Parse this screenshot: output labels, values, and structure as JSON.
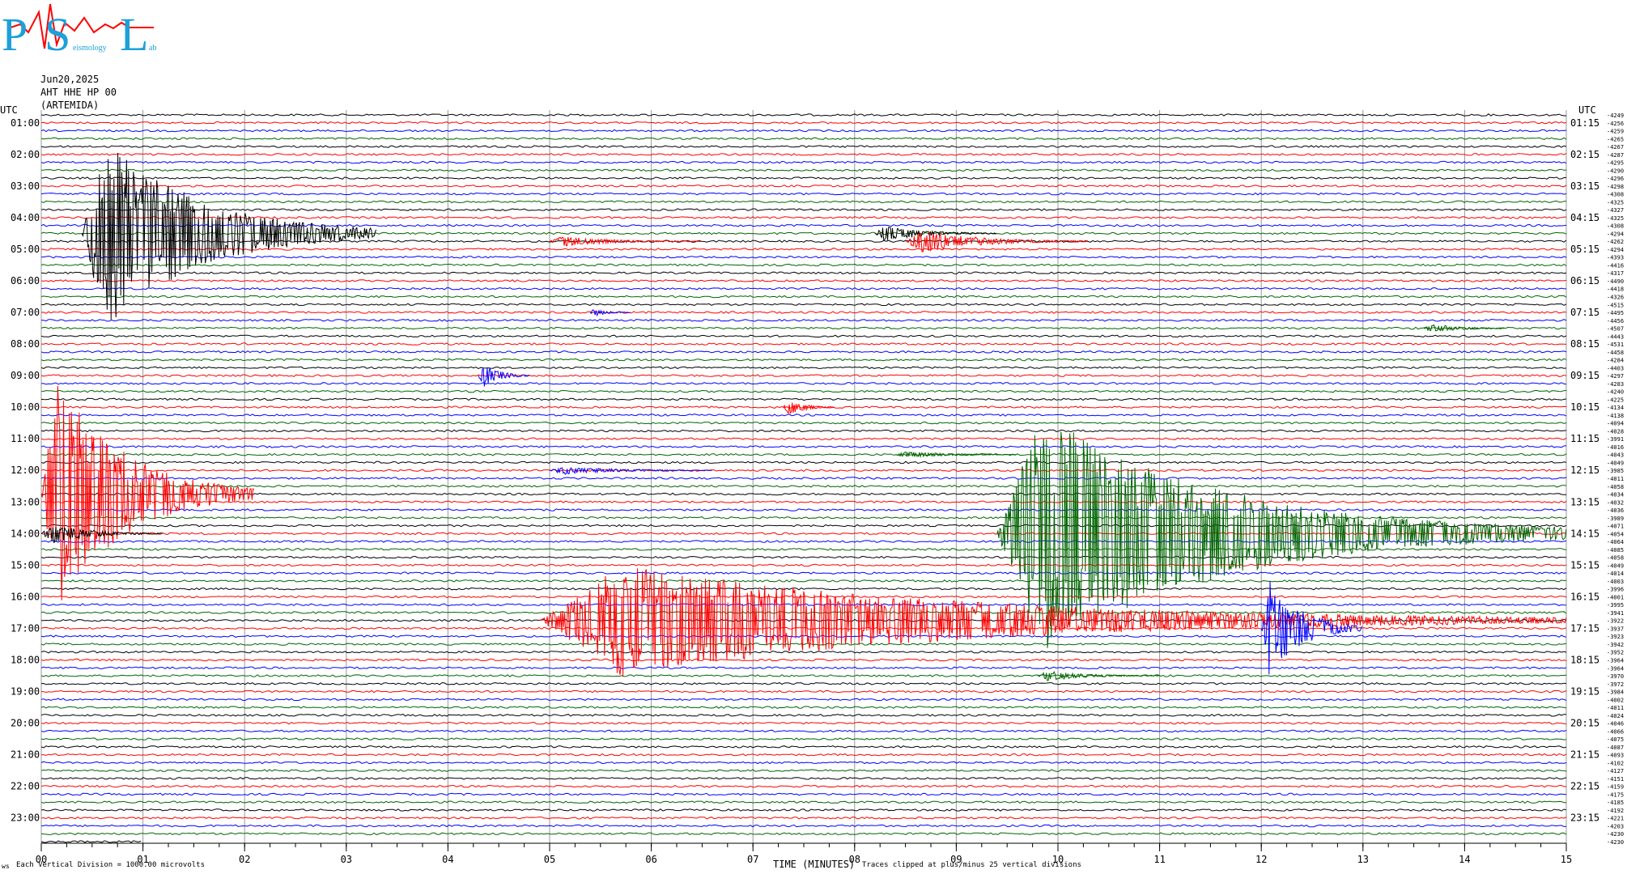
{
  "header": {
    "logo_letters": [
      "P",
      "S",
      "L"
    ],
    "logo_words": [
      "eismology",
      "ab"
    ],
    "date": "Jun20,2025",
    "station": "AHT HHE HP 00",
    "station_name": "(ARTEMIDA)"
  },
  "footer": {
    "left_small": "ws",
    "left_note": "Each Vertical Division = 1000.00 microvolts",
    "axis_title": "TIME (MINUTES)",
    "clip_note": "Traces clipped at plus/minus 25 vertical divisions"
  },
  "colors": {
    "trace_cycle": [
      "#000000",
      "#ff0000",
      "#0000ff",
      "#006400"
    ],
    "logo_blue": "#1ea0d8",
    "logo_red": "#ff0000",
    "grid": "#999999"
  },
  "chart_data": {
    "type": "line",
    "description_free": true,
    "x_range": [
      0,
      15
    ],
    "x_ticks": [
      "00",
      "01",
      "02",
      "03",
      "04",
      "05",
      "06",
      "07",
      "08",
      "09",
      "10",
      "11",
      "12",
      "13",
      "14",
      "15"
    ],
    "rows_per_hour": 4,
    "row_minutes": 15,
    "row_count": 93,
    "left_axis_label": "UTC",
    "right_axis_label": "UTC",
    "left_hour_labels": [
      "01:00",
      "02:00",
      "03:00",
      "04:00",
      "05:00",
      "06:00",
      "07:00",
      "08:00",
      "09:00",
      "10:00",
      "11:00",
      "12:00",
      "13:00",
      "14:00",
      "15:00",
      "16:00",
      "17:00",
      "18:00",
      "19:00",
      "20:00",
      "21:00",
      "22:00",
      "23:00"
    ],
    "right_hour_labels": [
      "01:15",
      "02:15",
      "03:15",
      "04:15",
      "05:15",
      "06:15",
      "07:15",
      "08:15",
      "09:15",
      "10:15",
      "11:15",
      "12:15",
      "13:15",
      "14:15",
      "15:15",
      "16:15",
      "17:15",
      "18:15",
      "19:15",
      "20:15",
      "21:15",
      "22:15",
      "23:15"
    ],
    "row_offsets": [
      "-4249",
      "-4256",
      "-4259",
      "-4265",
      "-4267",
      "-4287",
      "-4295",
      "-4290",
      "-4296",
      "-4298",
      "-4308",
      "-4325",
      "-4327",
      "-4325",
      "-4308",
      "-4294",
      "-4262",
      "-4294",
      "-4393",
      "-4416",
      "-4317",
      "-4490",
      "-4418",
      "-4326",
      "-4515",
      "-4495",
      "-4456",
      "-4507",
      "-4443",
      "-4531",
      "-4458",
      "-4284",
      "-4403",
      "-4297",
      "-4283",
      "-4240",
      "-4225",
      "-4134",
      "-4138",
      "-4094",
      "-4028",
      "-3991",
      "-4016",
      "-4043",
      "-4049",
      "-3985",
      "-4011",
      "-4058",
      "-4034",
      "-4032",
      "-4036",
      "-3989",
      "-4071",
      "-4054",
      "-4064",
      "-4085",
      "-4058",
      "-4049",
      "-4014",
      "-4003",
      "-3996",
      "-4001",
      "-3995",
      "-3941",
      "-3922",
      "-3937",
      "-3923",
      "-3942",
      "-3952",
      "-3964",
      "-3964",
      "-3970",
      "-3972",
      "-3984",
      "-4002",
      "-4011",
      "-4024",
      "-4046",
      "-4066",
      "-4075",
      "-4087",
      "-4093",
      "-4102",
      "-4127",
      "-4151",
      "-4159",
      "-4175",
      "-4185",
      "-4192",
      "-4221",
      "-4203",
      "-4230",
      "-4230"
    ],
    "events": [
      {
        "row": 15,
        "start": 0.4,
        "end": 3.3,
        "amp": 120,
        "color": "#000000"
      },
      {
        "row": 16,
        "start": 5.0,
        "end": 6.5,
        "amp": 6,
        "color": "#ff0000"
      },
      {
        "row": 15,
        "start": 8.2,
        "end": 9.4,
        "amp": 10,
        "color": "#000000"
      },
      {
        "row": 16,
        "start": 8.5,
        "end": 10.3,
        "amp": 14,
        "color": "#ff0000"
      },
      {
        "row": 25,
        "start": 5.4,
        "end": 5.8,
        "amp": 5,
        "color": "#0000ff"
      },
      {
        "row": 27,
        "start": 13.6,
        "end": 14.4,
        "amp": 6,
        "color": "#006400"
      },
      {
        "row": 33,
        "start": 4.3,
        "end": 4.8,
        "amp": 16,
        "color": "#0000ff"
      },
      {
        "row": 37,
        "start": 7.3,
        "end": 7.8,
        "amp": 10,
        "color": "#ff0000"
      },
      {
        "row": 43,
        "start": 8.4,
        "end": 9.6,
        "amp": 4,
        "color": "#006400"
      },
      {
        "row": 45,
        "start": 5.0,
        "end": 6.6,
        "amp": 5,
        "color": "#0000ff"
      },
      {
        "row": 48,
        "start": 0.0,
        "end": 2.1,
        "amp": 140,
        "color": "#ff0000"
      },
      {
        "row": 53,
        "start": 0.0,
        "end": 1.2,
        "amp": 12,
        "color": "#000000"
      },
      {
        "row": 53,
        "start": 9.4,
        "end": 15.0,
        "amp": 150,
        "color": "#006400"
      },
      {
        "row": 64,
        "start": 4.9,
        "end": 15.0,
        "amp": 70,
        "color": "#ff0000"
      },
      {
        "row": 65,
        "start": 12.0,
        "end": 13.0,
        "amp": 60,
        "color": "#0000ff"
      },
      {
        "row": 71,
        "start": 9.8,
        "end": 11.0,
        "amp": 6,
        "color": "#006400"
      }
    ]
  }
}
